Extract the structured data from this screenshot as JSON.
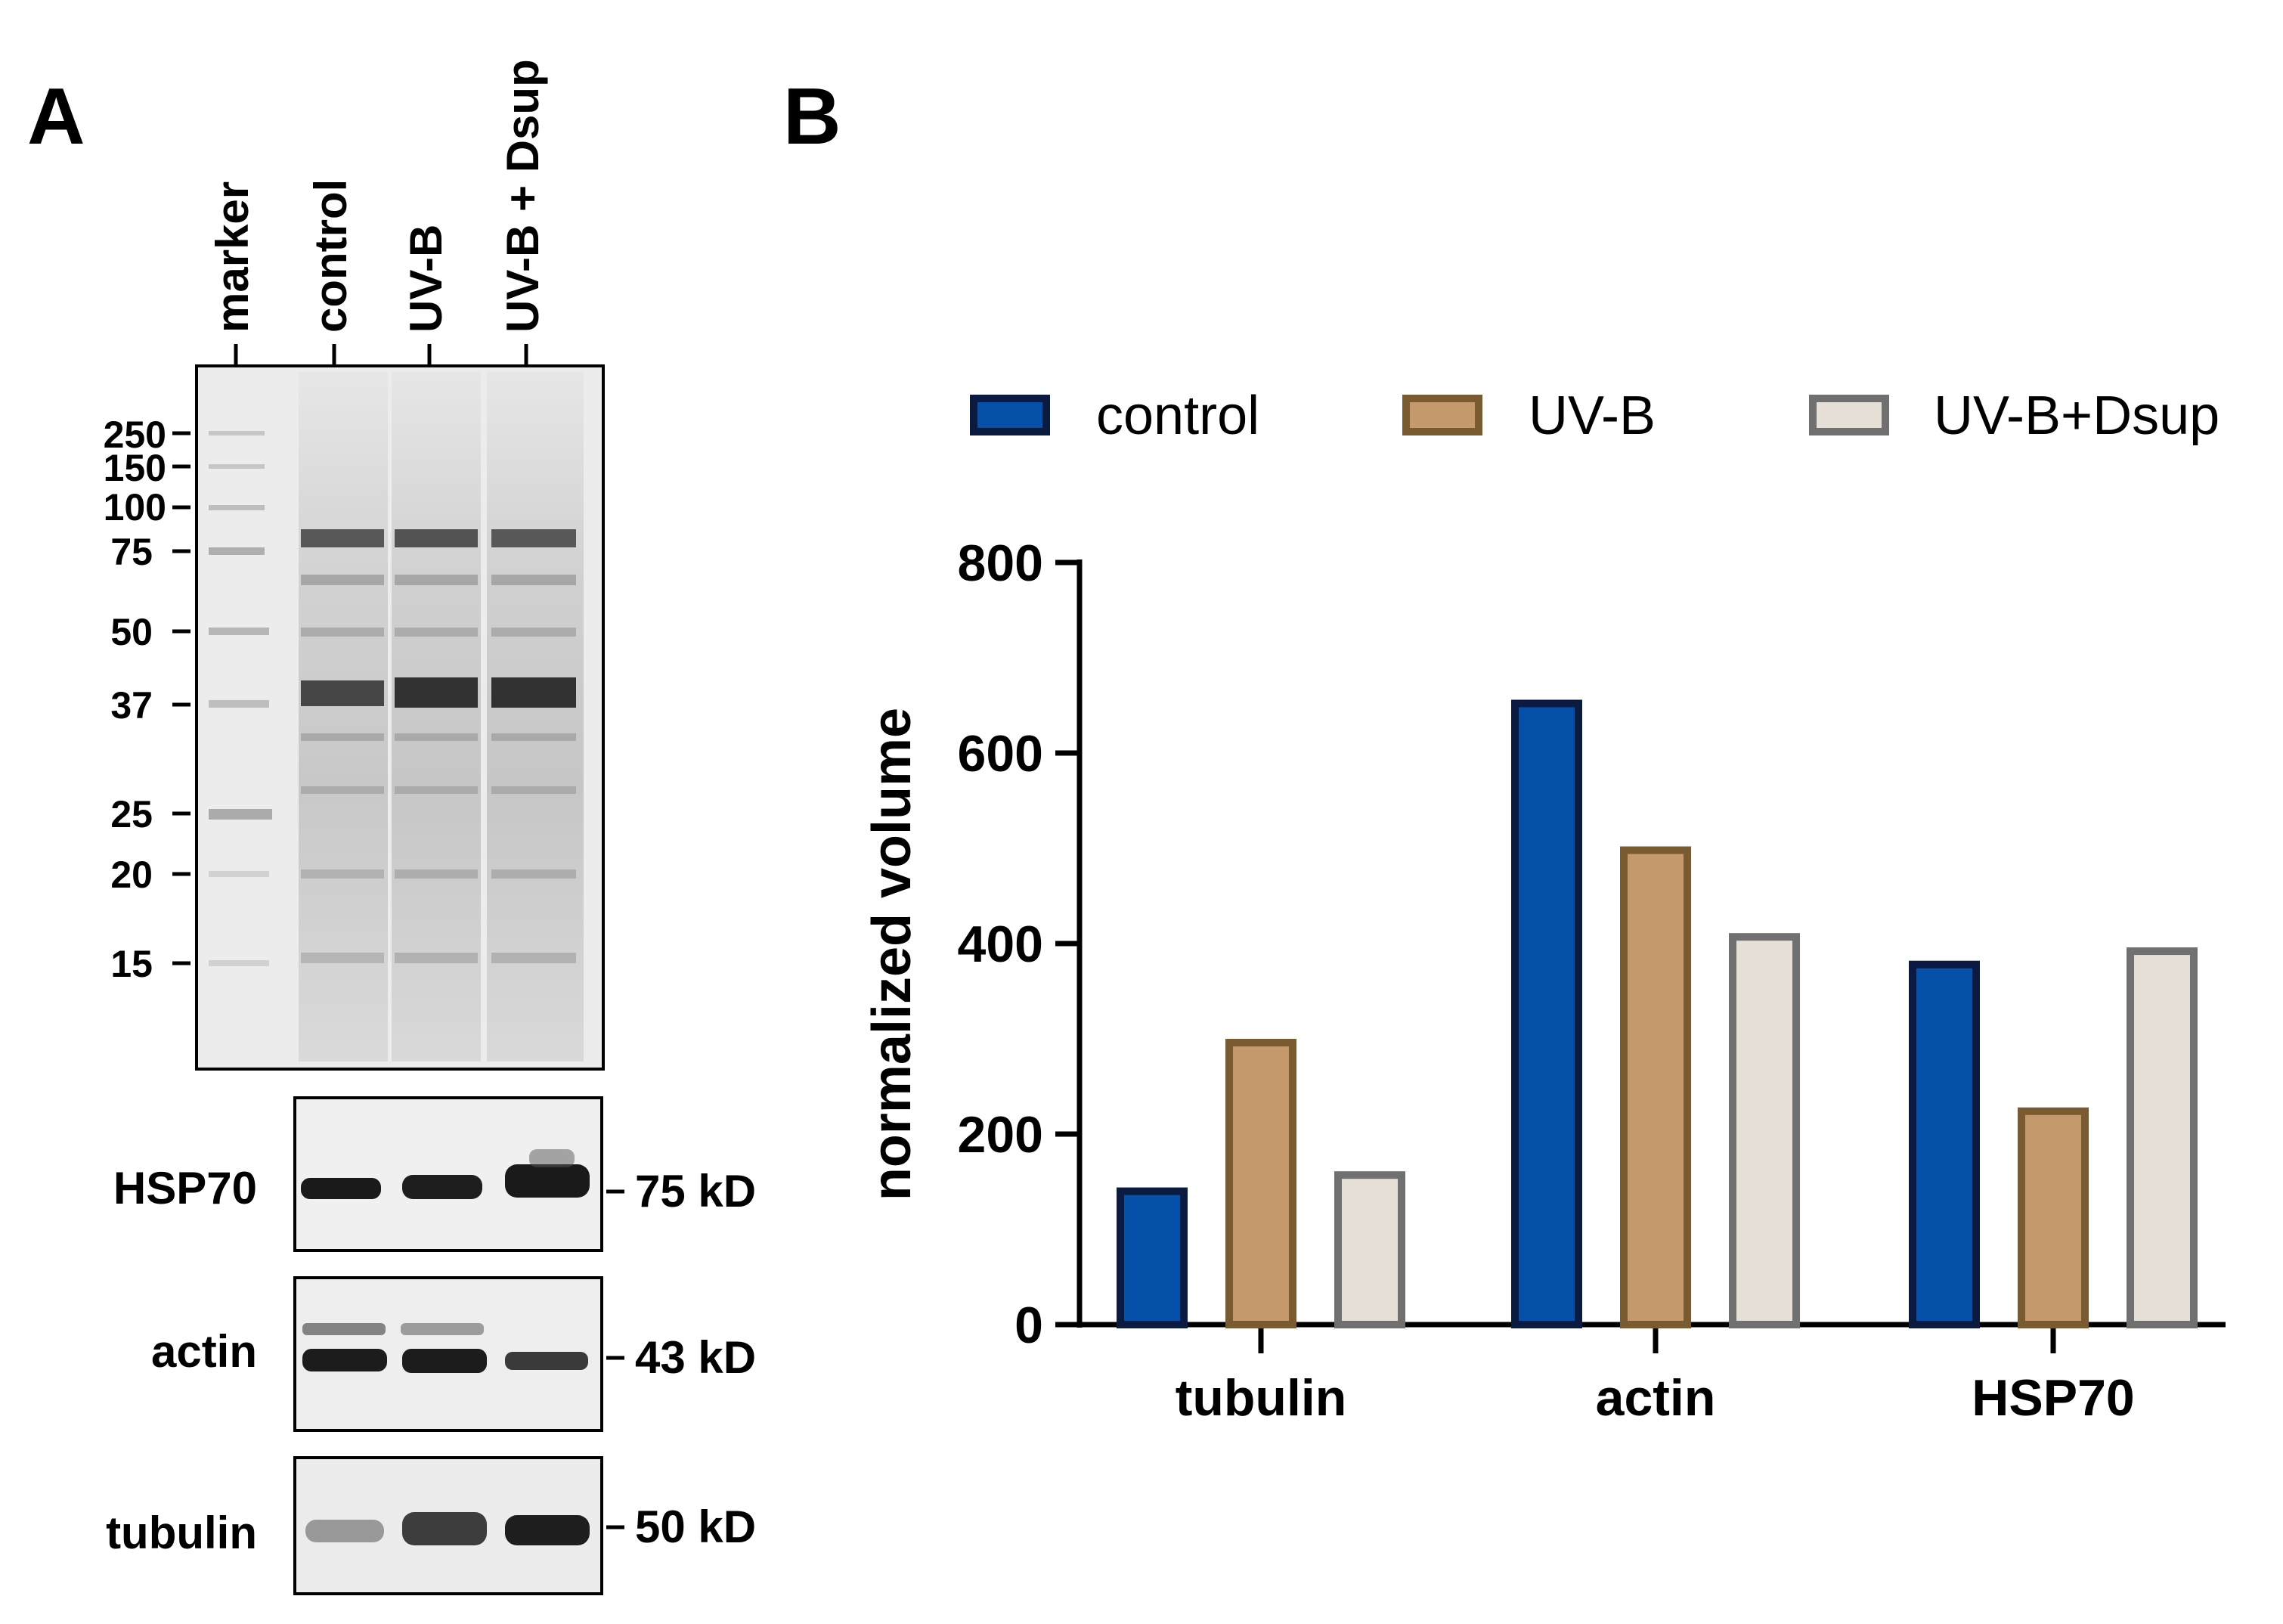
{
  "panel_a": {
    "label": "A",
    "lanes": [
      "marker",
      "control",
      "UV-B",
      "UV-B + Dsup"
    ],
    "markers": [
      "250",
      "150",
      "100",
      "75",
      "50",
      "37",
      "25",
      "20",
      "15"
    ],
    "blots": [
      {
        "name": "HSP70",
        "size": "75 kD"
      },
      {
        "name": "actin",
        "size": "43 kD"
      },
      {
        "name": "tubulin",
        "size": "50 kD"
      }
    ]
  },
  "panel_b": {
    "label": "B",
    "legend": [
      "control",
      "UV-B",
      "UV-B+Dsup"
    ],
    "colors": {
      "control_fill": "#0550a8",
      "control_edge": "#0b1a40",
      "uvb_fill": "#c49a6c",
      "uvb_edge": "#7a5a30",
      "dsup_fill": "#e6e0d6",
      "dsup_edge": "#707070"
    }
  },
  "chart_data": {
    "type": "bar",
    "categories": [
      "tubulin",
      "actin",
      "HSP70"
    ],
    "series": [
      {
        "name": "control",
        "values": [
          140,
          652,
          378
        ]
      },
      {
        "name": "UV-B",
        "values": [
          296,
          498,
          224
        ]
      },
      {
        "name": "UV-B+Dsup",
        "values": [
          157,
          407,
          392
        ]
      }
    ],
    "ylabel": "normalized volume",
    "xlabel": "",
    "ylim": [
      0,
      800
    ],
    "yticks": [
      "0",
      "200",
      "400",
      "600",
      "800"
    ],
    "legend_position": "top",
    "grid": false
  }
}
